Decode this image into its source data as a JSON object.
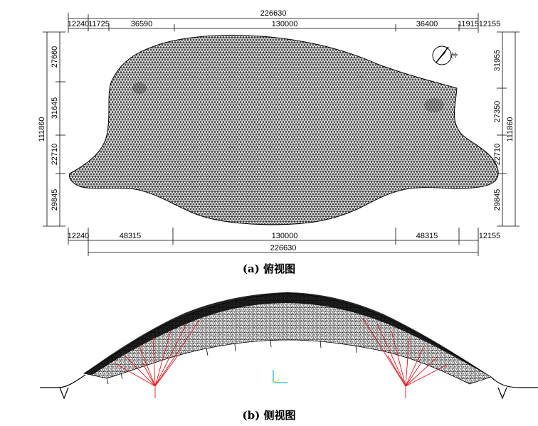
{
  "top_view": {
    "caption": "(a) 俯视图",
    "top": {
      "overall": "226630",
      "segments": [
        "12240",
        "11725",
        "36590",
        "130000",
        "36400",
        "11915",
        "12155"
      ]
    },
    "bottom": {
      "overall": "226630",
      "segments": [
        "12240",
        "48315",
        "130000",
        "48315",
        "12155"
      ]
    },
    "left": {
      "overall": "111860",
      "segments": [
        "27660",
        "31645",
        "22710",
        "29845"
      ]
    },
    "right": {
      "overall": "111860",
      "segments": [
        "31955",
        "27350",
        "22710",
        "29845"
      ]
    }
  },
  "side_view": {
    "caption": "(b) 侧视图"
  },
  "colors": {
    "mesh": "#000000",
    "support_members": "#e8141b",
    "axis_marker": "#34c3f0"
  },
  "icons": [
    "north-arrow-icon"
  ]
}
